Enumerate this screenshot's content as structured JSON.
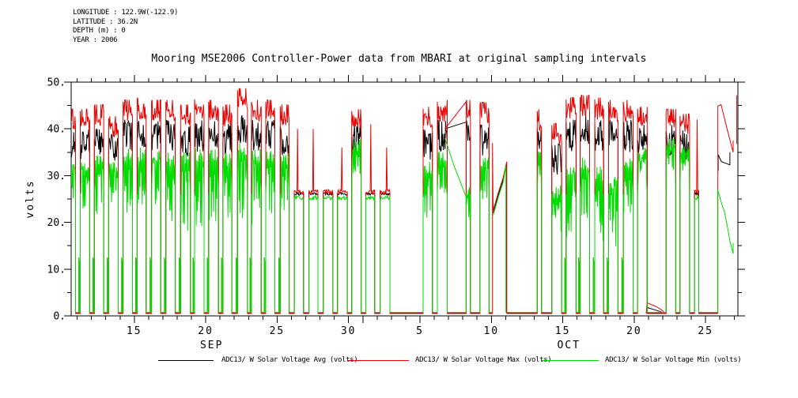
{
  "meta": {
    "longitude": "LONGITUDE : 122.9W(-122.9)",
    "latitude": "LATITUDE : 36.2N",
    "depth": "DEPTH (m) : 0",
    "year": "YEAR : 2006"
  },
  "title": "Mooring MSE2006 Controller-Power data from MBARI at original sampling intervals",
  "legend": {
    "entries": [
      {
        "label": "ADC13/ W Solar Voltage Avg (volts)",
        "color": "#000000"
      },
      {
        "label": "ADC13/ W Solar Voltage Max (volts)",
        "color": "#ee0000"
      },
      {
        "label": "ADC13/ W Solar Voltage Min (volts)",
        "color": "#00dd00"
      }
    ]
  },
  "chart_data": {
    "type": "line",
    "title": "Mooring MSE2006 Controller-Power data from MBARI at original sampling intervals",
    "xlabel": "",
    "ylabel": "volts",
    "ylim": [
      0,
      50
    ],
    "y_major_ticks": [
      0,
      10,
      20,
      30,
      40,
      50
    ],
    "y_tick_labels": [
      "0.",
      "10.",
      "20.",
      "30.",
      "40.",
      "50."
    ],
    "y_minor_step": 5,
    "grid": false,
    "legend_position": "bottom",
    "x_axis": {
      "span_days": 46.68,
      "day0_offset": 0.42,
      "major_tick_days": [
        4,
        9,
        14,
        19,
        24,
        29,
        34,
        39,
        44
      ],
      "major_tick_labels": [
        "15",
        "20",
        "25",
        "30",
        "5",
        "10",
        "15",
        "20",
        "25"
      ],
      "month_boundary_day": 20,
      "month_labels": [
        {
          "text": "SEP",
          "day": 9.42
        },
        {
          "text": "OCT",
          "day": 34.42
        }
      ]
    },
    "series": [
      {
        "key": "avg",
        "name": "ADC13/ W Solar Voltage Avg (volts)",
        "color": "#000000"
      },
      {
        "key": "max",
        "name": "ADC13/ W Solar Voltage Max (volts)",
        "color": "#ee0000"
      },
      {
        "key": "min",
        "name": "ADC13/ W Solar Voltage Min (volts)",
        "color": "#00dd00"
      }
    ],
    "baseline_volts": {
      "max": 0.5,
      "avg": 0.6,
      "min": 0.75
    },
    "baseline_end_day": 44.86,
    "days": [
      {
        "i": -1,
        "d": "Sep 10",
        "t": "high",
        "mx": 43,
        "av": 40,
        "mn": 34,
        "dp": 8,
        "ds": 12.5
      },
      {
        "i": 0,
        "d": "Sep 11",
        "t": "high",
        "mx": 43,
        "av": 40,
        "mn": 34,
        "dp": 10,
        "ds": 12.5
      },
      {
        "i": 1,
        "d": "Sep 12",
        "t": "high",
        "mx": 44,
        "av": 41,
        "mn": 35,
        "dp": 12,
        "ds": 12.5
      },
      {
        "i": 2,
        "d": "Sep 13",
        "t": "high",
        "mx": 41.5,
        "av": 39,
        "mn": 33,
        "dp": 8,
        "ds": 12.5
      },
      {
        "i": 3,
        "d": "Sep 14",
        "t": "high",
        "mx": 45,
        "av": 42,
        "mn": 36,
        "dp": 12,
        "ds": 12.5
      },
      {
        "i": 4,
        "d": "Sep 15",
        "t": "high",
        "mx": 45.5,
        "av": 42.5,
        "mn": 36,
        "dp": 14,
        "ds": 12.5
      },
      {
        "i": 5,
        "d": "Sep 16",
        "t": "high",
        "mx": 45,
        "av": 42,
        "mn": 36,
        "dp": 12,
        "ds": 12.5
      },
      {
        "i": 6,
        "d": "Sep 17",
        "t": "high",
        "mx": 45,
        "av": 42,
        "mn": 35,
        "dp": 13,
        "ds": 12.5
      },
      {
        "i": 7,
        "d": "Sep 18",
        "t": "high",
        "mx": 44,
        "av": 41,
        "mn": 35,
        "dp": 15,
        "ds": 12.5
      },
      {
        "i": 8,
        "d": "Sep 19",
        "t": "high",
        "mx": 45.5,
        "av": 42,
        "mn": 36,
        "dp": 16,
        "ds": 12.5
      },
      {
        "i": 9,
        "d": "Sep 20",
        "t": "high",
        "mx": 45,
        "av": 42,
        "mn": 36,
        "dp": 14,
        "ds": 12.5
      },
      {
        "i": 10,
        "d": "Sep 21",
        "t": "high",
        "mx": 44,
        "av": 41.5,
        "mn": 35,
        "dp": 12,
        "ds": 12.5
      },
      {
        "i": 11,
        "d": "Sep 22",
        "t": "high",
        "mx": 47.5,
        "av": 43,
        "mn": 37,
        "dp": 15,
        "ds": 12.5
      },
      {
        "i": 12,
        "d": "Sep 23",
        "t": "high",
        "mx": 45,
        "av": 42,
        "mn": 36,
        "dp": 17,
        "ds": 12.5
      },
      {
        "i": 13,
        "d": "Sep 24",
        "t": "high",
        "mx": 45,
        "av": 42,
        "mn": 36,
        "dp": 14,
        "ds": 12.5
      },
      {
        "i": 14,
        "d": "Sep 25",
        "t": "high",
        "mx": 44,
        "av": 41,
        "mn": 35,
        "dp": 12,
        "ds": 12.5
      },
      {
        "i": 15,
        "d": "Sep 26",
        "t": "low",
        "mx": 40,
        "av": 26.5,
        "mn": 25.5
      },
      {
        "i": 16,
        "d": "Sep 27",
        "t": "low",
        "mx": 40,
        "av": 26.5,
        "mn": 25.5
      },
      {
        "i": 17,
        "d": "Sep 28",
        "t": "low",
        "mx": 27,
        "av": 26.5,
        "mn": 25.5
      },
      {
        "i": 18,
        "d": "Sep 29",
        "t": "low",
        "mx": 36,
        "av": 27,
        "mn": 26
      },
      {
        "i": 19,
        "d": "Sep 30",
        "t": "high",
        "mx": 43,
        "av": 41,
        "mn": 38,
        "dp": 6
      },
      {
        "i": 20,
        "d": "Oct 1",
        "t": "low",
        "mx": 41,
        "av": 26.5,
        "mn": 25.5
      },
      {
        "i": 21,
        "d": "Oct 2",
        "t": "low",
        "mx": 36,
        "av": 26.5,
        "mn": 25.5
      },
      {
        "i": 22,
        "d": "Oct 3",
        "t": "off"
      },
      {
        "i": 23,
        "d": "Oct 4",
        "t": "off"
      },
      {
        "i": 24,
        "d": "Oct 5",
        "t": "high",
        "mx": 43.5,
        "av": 40,
        "mn": 33,
        "dp": 10
      },
      {
        "i": 25,
        "d": "Oct 6",
        "t": "high",
        "mx": 45,
        "av": 42,
        "mn": 36,
        "dp": 8
      },
      {
        "i": 26,
        "d": "Oct 7",
        "t": "off"
      },
      {
        "i": 27,
        "d": "Oct 8",
        "t": "high",
        "mx": 45,
        "av": 42,
        "mn": 28,
        "dp": 6,
        "narrow": true
      },
      {
        "i": 28,
        "d": "Oct 9",
        "t": "high",
        "mx": 44.5,
        "av": 41,
        "mn": 34,
        "dp": 8
      },
      {
        "i": 29,
        "d": "Oct 10",
        "t": "break",
        "from": 29.08,
        "to": 30.08
      },
      {
        "i": 30,
        "d": "Oct 11",
        "t": "off"
      },
      {
        "i": 31,
        "d": "Oct 12",
        "t": "off"
      },
      {
        "i": 32,
        "d": "Oct 13",
        "t": "high",
        "mx": 43,
        "av": 41,
        "mn": 37,
        "dp": 5,
        "narrow": true
      },
      {
        "i": 33,
        "d": "Oct 14",
        "t": "high",
        "mx": 40,
        "av": 37,
        "mn": 28,
        "dp": 8
      },
      {
        "i": 34,
        "d": "Oct 15",
        "t": "high",
        "mx": 45.5,
        "av": 42,
        "mn": 33,
        "dp": 15,
        "ds": 12.5
      },
      {
        "i": 35,
        "d": "Oct 16",
        "t": "high",
        "mx": 46,
        "av": 43,
        "mn": 34,
        "dp": 12,
        "ds": 12.5
      },
      {
        "i": 36,
        "d": "Oct 17",
        "t": "high",
        "mx": 45.5,
        "av": 42,
        "mn": 32,
        "dp": 14,
        "ds": 12.5
      },
      {
        "i": 37,
        "d": "Oct 18",
        "t": "high",
        "mx": 45,
        "av": 42,
        "mn": 30,
        "dp": 14,
        "ds": 12.5
      },
      {
        "i": 38,
        "d": "Oct 19",
        "t": "high",
        "mx": 45,
        "av": 42,
        "mn": 34,
        "dp": 10,
        "ds": 12.5
      },
      {
        "i": 39,
        "d": "Oct 20",
        "t": "high",
        "mx": 43.5,
        "av": 41,
        "mn": 36,
        "dp": 6
      },
      {
        "i": 40,
        "d": "Oct 21",
        "t": "off"
      },
      {
        "i": 41,
        "d": "Oct 22",
        "t": "high",
        "mx": 43,
        "av": 41,
        "mn": 38,
        "dp": 6
      },
      {
        "i": 42,
        "d": "Oct 23",
        "t": "high",
        "mx": 42,
        "av": 40,
        "mn": 37,
        "dp": 5
      },
      {
        "i": 43,
        "d": "Oct 24",
        "t": "low",
        "mx": 42,
        "av": 26.5,
        "mn": 25.5,
        "narrow": true
      },
      {
        "i": 44,
        "d": "Oct 25",
        "t": "off"
      },
      {
        "i": 45,
        "d": "Oct 26",
        "t": "off"
      },
      {
        "i": 46,
        "d": "Oct 27",
        "t": "off"
      }
    ],
    "specials": [
      {
        "name": "gap-interpolation-max",
        "series": "max",
        "points": [
          [
            25.75,
            40
          ],
          [
            27.28,
            46
          ]
        ]
      },
      {
        "name": "gap-interpolation-avg",
        "series": "avg",
        "points": [
          [
            25.75,
            40
          ],
          [
            27.28,
            41.5
          ]
        ]
      },
      {
        "name": "gap-interpolation-min",
        "series": "min",
        "points": [
          [
            25.75,
            38
          ],
          [
            26.4,
            32
          ],
          [
            26.85,
            28.5
          ],
          [
            27.28,
            25
          ]
        ]
      },
      {
        "name": "ramp-max",
        "series": "max",
        "points": [
          [
            29.08,
            0.5
          ],
          [
            29.08,
            37
          ],
          [
            29.12,
            22.5
          ],
          [
            29.5,
            26.5
          ],
          [
            29.82,
            29.5
          ],
          [
            30.08,
            33
          ],
          [
            30.08,
            0.5
          ]
        ]
      },
      {
        "name": "ramp-avg",
        "series": "avg",
        "points": [
          [
            29.12,
            22
          ],
          [
            29.5,
            26
          ],
          [
            29.82,
            29
          ],
          [
            30.05,
            32.5
          ],
          [
            30.05,
            0.6
          ]
        ]
      },
      {
        "name": "ramp-min",
        "series": "min",
        "points": [
          [
            29.12,
            21.5
          ],
          [
            29.5,
            25.5
          ],
          [
            29.82,
            28.5
          ],
          [
            30.02,
            32
          ],
          [
            30.02,
            0.75
          ]
        ]
      },
      {
        "name": "oct21-triangle-max",
        "series": "max",
        "points": [
          [
            39.85,
            0.5
          ],
          [
            39.9,
            2.8
          ],
          [
            40.6,
            1.9
          ],
          [
            41.05,
            1.0
          ],
          [
            41.05,
            0.5
          ]
        ]
      },
      {
        "name": "oct21-triangle-avg",
        "series": "avg",
        "points": [
          [
            39.85,
            0.6
          ],
          [
            39.9,
            1.8
          ],
          [
            40.95,
            0.8
          ]
        ]
      },
      {
        "name": "end-anomaly-max",
        "series": "max",
        "points": [
          [
            44.86,
            0.5
          ],
          [
            44.86,
            44.9
          ],
          [
            45.08,
            45.2
          ],
          [
            45.5,
            40
          ],
          [
            45.93,
            35
          ],
          [
            45.93,
            37.5
          ]
        ]
      },
      {
        "name": "end-anomaly-max-edge",
        "series": "max",
        "points": [
          [
            46.18,
            36.8
          ],
          [
            46.18,
            47.2
          ]
        ]
      },
      {
        "name": "end-anomaly-avg",
        "series": "avg",
        "points": [
          [
            44.88,
            31
          ],
          [
            44.88,
            34.5
          ],
          [
            45.1,
            33
          ],
          [
            45.7,
            32.3
          ],
          [
            45.7,
            35
          ]
        ]
      },
      {
        "name": "end-anomaly-min",
        "series": "min",
        "points": [
          [
            44.84,
            0.75
          ],
          [
            44.84,
            27
          ],
          [
            45.15,
            23.7
          ],
          [
            45.3,
            22.5
          ],
          [
            45.5,
            19.5
          ],
          [
            45.7,
            16
          ],
          [
            45.93,
            13.3
          ],
          [
            45.93,
            15.6
          ]
        ]
      }
    ]
  }
}
